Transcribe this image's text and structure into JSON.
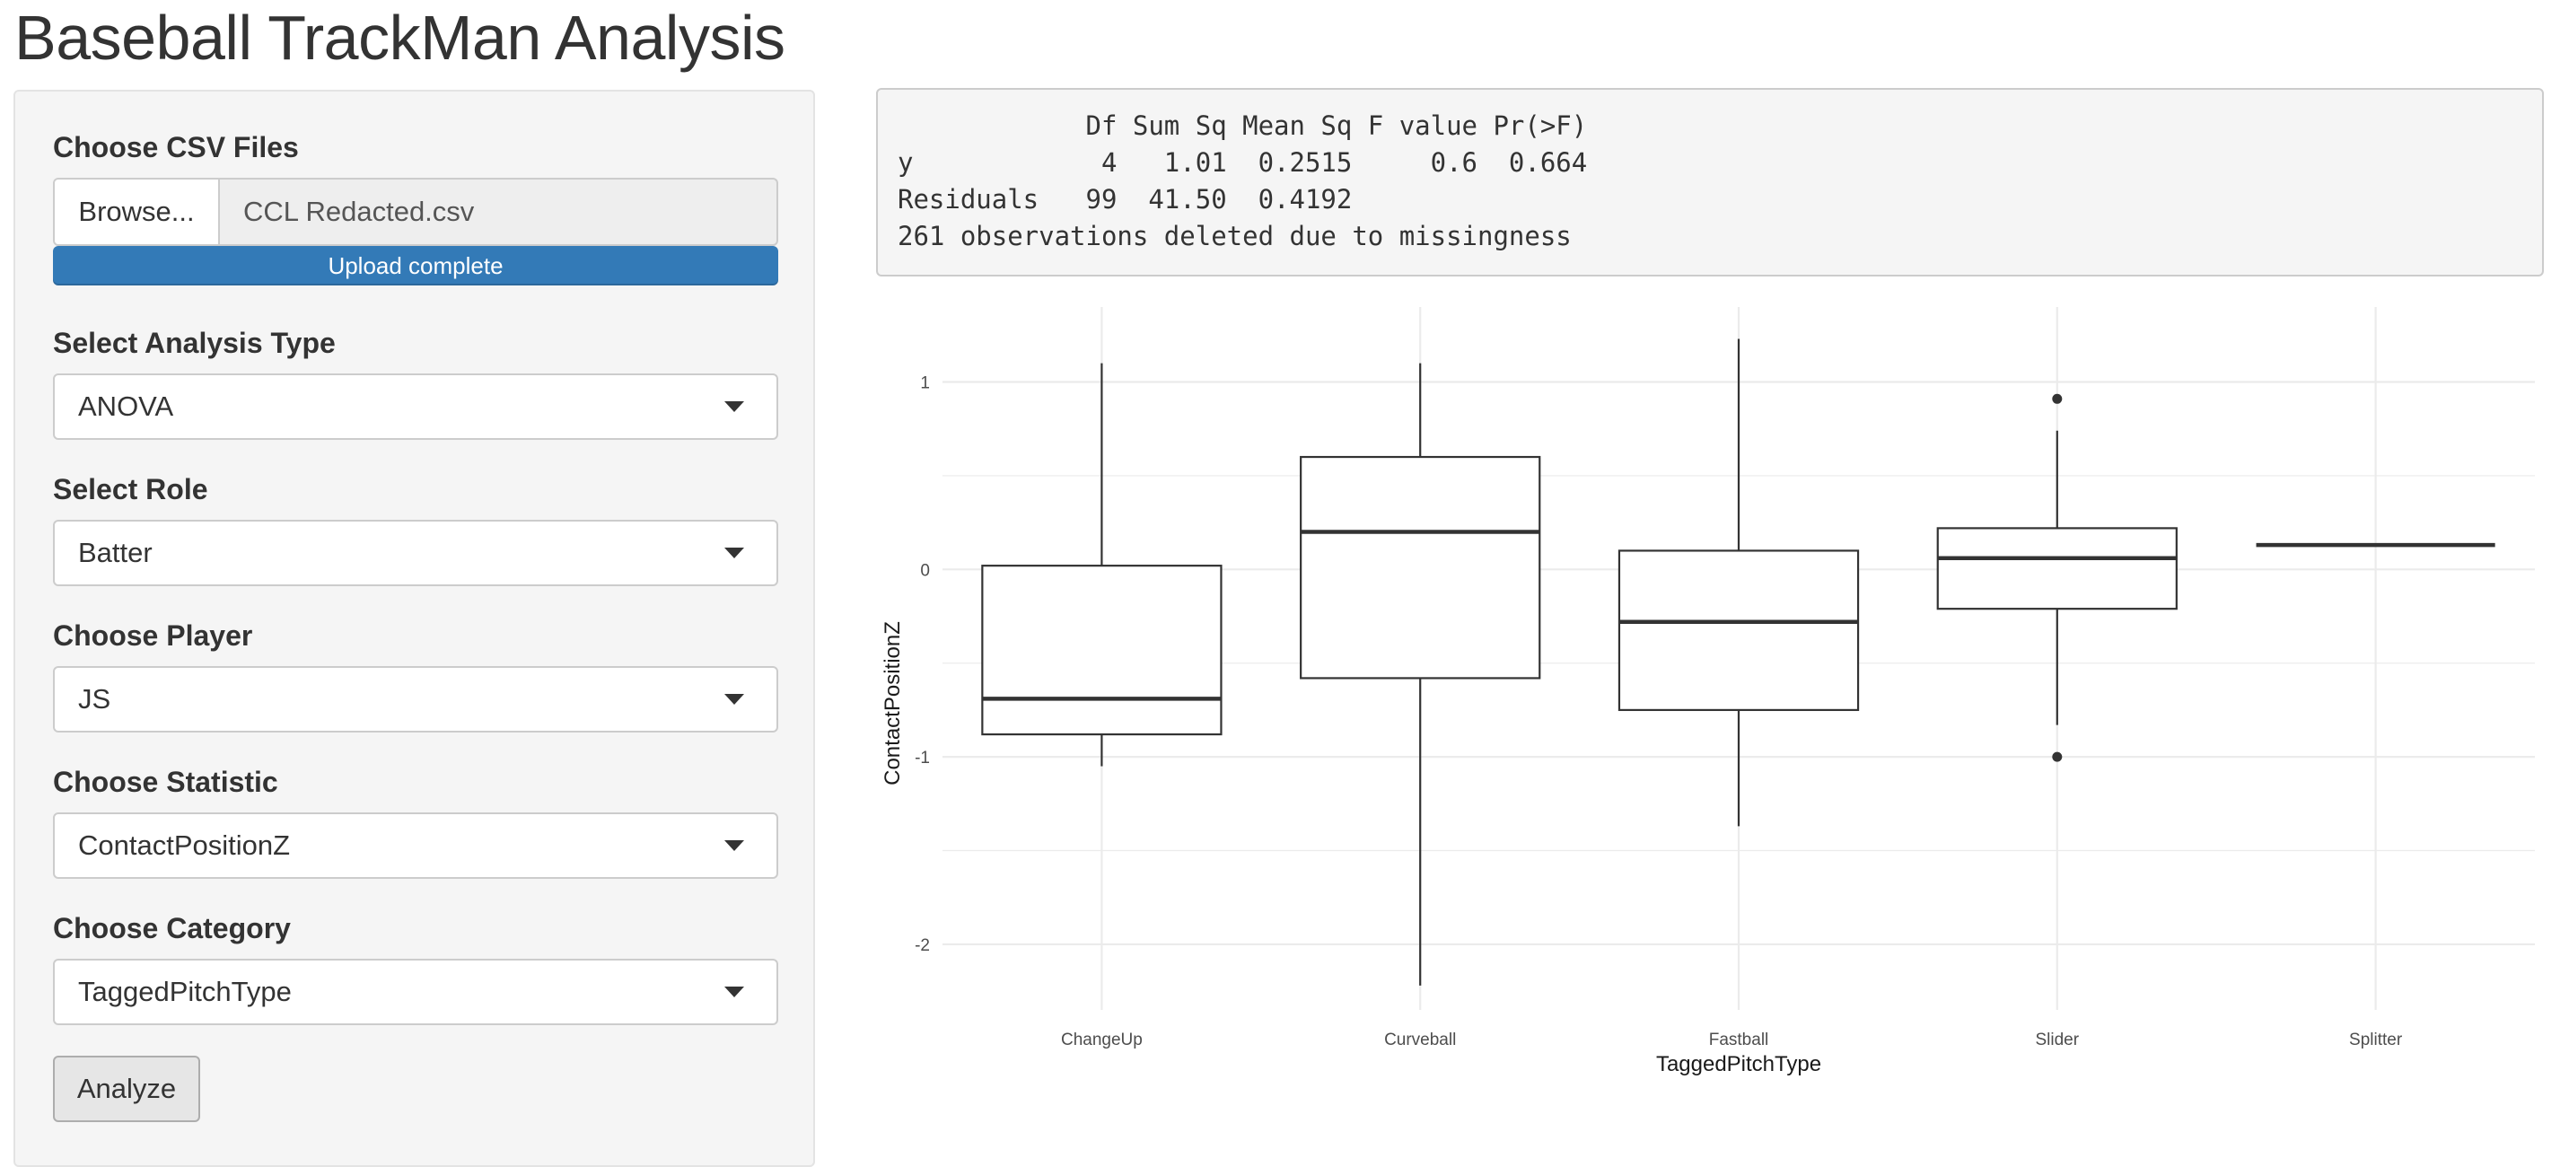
{
  "app": {
    "title": "Baseball TrackMan Analysis"
  },
  "sidebar": {
    "file_input": {
      "label": "Choose CSV Files",
      "browse_label": "Browse...",
      "file_name": "CCL Redacted.csv",
      "progress_text": "Upload complete",
      "progress_percent": 100
    },
    "analysis_type": {
      "label": "Select Analysis Type",
      "value": "ANOVA"
    },
    "role": {
      "label": "Select Role",
      "value": "Batter"
    },
    "player": {
      "label": "Choose Player",
      "value": "JS"
    },
    "statistic": {
      "label": "Choose Statistic",
      "value": "ContactPositionZ"
    },
    "category": {
      "label": "Choose Category",
      "value": "TaggedPitchType"
    },
    "analyze_label": "Analyze",
    "caret_icon": "caret-down-icon"
  },
  "output": {
    "lines": [
      "            Df Sum Sq Mean Sq F value Pr(>F)",
      "y            4   1.01  0.2515     0.6  0.664",
      "Residuals   99  41.50  0.4192",
      "261 observations deleted due to missingness"
    ]
  },
  "chart_data": {
    "type": "boxplot",
    "xlabel": "TaggedPitchType",
    "ylabel": "ContactPositionZ",
    "ylim": [
      -2.35,
      1.4
    ],
    "yticks": [
      -2,
      -1,
      0,
      1
    ],
    "grid": true,
    "categories": [
      "ChangeUp",
      "Curveball",
      "Fastball",
      "Slider",
      "Splitter"
    ],
    "boxes": [
      {
        "category": "ChangeUp",
        "whisker_low": -1.05,
        "q1": -0.88,
        "median": -0.69,
        "q3": 0.02,
        "whisker_high": 1.1,
        "outliers": []
      },
      {
        "category": "Curveball",
        "whisker_low": -2.22,
        "q1": -0.58,
        "median": 0.2,
        "q3": 0.6,
        "whisker_high": 1.1,
        "outliers": []
      },
      {
        "category": "Fastball",
        "whisker_low": -1.37,
        "q1": -0.75,
        "median": -0.28,
        "q3": 0.1,
        "whisker_high": 1.23,
        "outliers": []
      },
      {
        "category": "Slider",
        "whisker_low": -0.83,
        "q1": -0.21,
        "median": 0.06,
        "q3": 0.22,
        "whisker_high": 0.74,
        "outliers": [
          0.91,
          -1.0
        ]
      },
      {
        "category": "Splitter",
        "whisker_low": 0.13,
        "q1": 0.13,
        "median": 0.13,
        "q3": 0.13,
        "whisker_high": 0.13,
        "outliers": []
      }
    ],
    "colors": {
      "grid": "#ebebeb",
      "box": "#333333",
      "fill": "#ffffff"
    }
  }
}
